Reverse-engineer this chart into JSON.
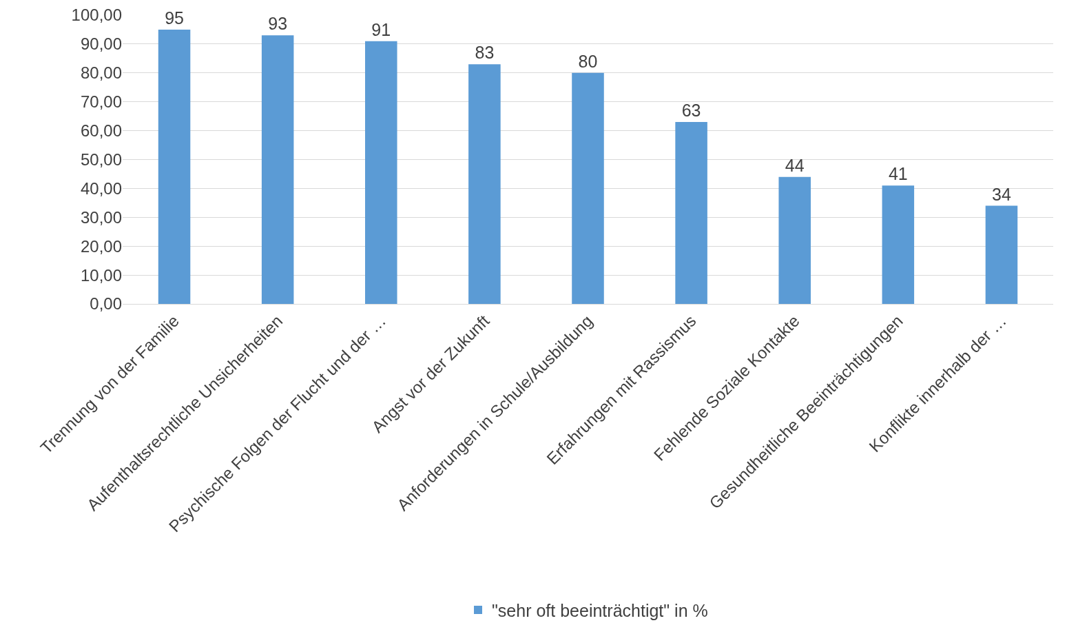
{
  "chart_data": {
    "type": "bar",
    "categories": [
      "Trennung von der Familie",
      "Aufenthaltsrechtliche Unsicherheiten",
      "Psychische Folgen der Flucht und der …",
      "Angst vor der Zukunft",
      "Anforderungen in Schule/Ausbildung",
      "Erfahrungen mit Rassismus",
      "Fehlende Soziale Kontakte",
      "Gesundheitliche Beeinträchtigungen",
      "Konflikte innerhalb der …"
    ],
    "series": [
      {
        "name": "\"sehr oft beeinträchtigt\" in %",
        "color": "#5b9bd5",
        "values": [
          95,
          93,
          91,
          83,
          80,
          63,
          44,
          41,
          34
        ]
      }
    ],
    "ylim": [
      0,
      100
    ],
    "yticks": [
      {
        "value": 0,
        "label": "0,00"
      },
      {
        "value": 10,
        "label": "10,00"
      },
      {
        "value": 20,
        "label": "20,00"
      },
      {
        "value": 30,
        "label": "30,00"
      },
      {
        "value": 40,
        "label": "40,00"
      },
      {
        "value": 50,
        "label": "50,00"
      },
      {
        "value": 60,
        "label": "60,00"
      },
      {
        "value": 70,
        "label": "70,00"
      },
      {
        "value": 80,
        "label": "80,00"
      },
      {
        "value": 90,
        "label": "90,00"
      },
      {
        "value": 100,
        "label": "100,00"
      }
    ],
    "grid": "y",
    "data_labels": true,
    "legend": "bottom"
  }
}
